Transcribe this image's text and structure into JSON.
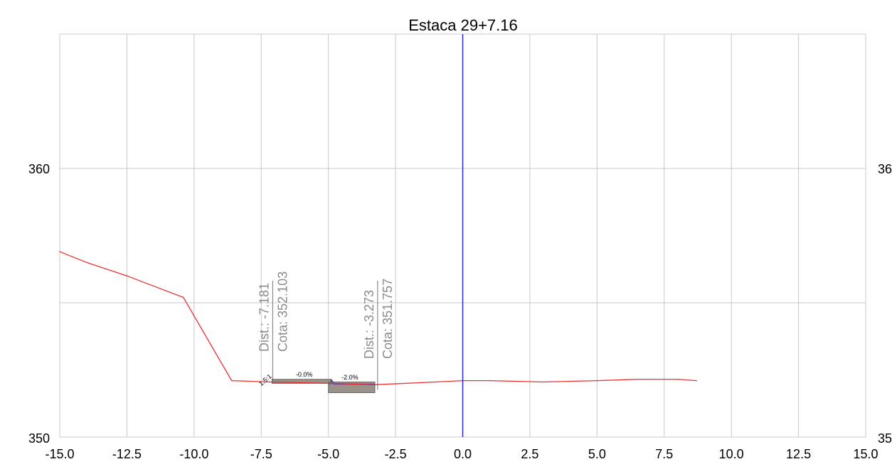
{
  "chart_data": {
    "type": "line",
    "title": "Estaca 29+7.16",
    "xlabel": "",
    "ylabel": "",
    "xlim": [
      -15.0,
      15.0
    ],
    "ylim": [
      350,
      365
    ],
    "grid": true,
    "x_ticks": [
      "-15.0",
      "-12.5",
      "-10.0",
      "-7.5",
      "-5.0",
      "-2.5",
      "0.0",
      "2.5",
      "5.0",
      "7.5",
      "10.0",
      "12.5",
      "15.0"
    ],
    "x_tick_values": [
      -15.0,
      -12.5,
      -10.0,
      -7.5,
      -5.0,
      -2.5,
      0.0,
      2.5,
      5.0,
      7.5,
      10.0,
      12.5,
      15.0
    ],
    "y_ticks_left": [
      {
        "value": 360,
        "label": "360"
      },
      {
        "value": 350,
        "label": "350"
      }
    ],
    "y_ticks_right": [
      {
        "value": 360,
        "label": "36"
      },
      {
        "value": 350,
        "label": "35"
      }
    ],
    "y_grid_values": [
      350,
      355,
      360,
      365
    ],
    "centerline": {
      "x": 0.0,
      "color": "#2b2bd6"
    },
    "series": [
      {
        "color": "#e83030",
        "x": [
          -15.0,
          -14.0,
          -12.5,
          -10.4,
          -8.6,
          -7.18,
          -5.0,
          -3.27,
          -1.0,
          0.0,
          1.0,
          3.0,
          5.0,
          6.5,
          8.0,
          8.7
        ],
        "y": [
          356.9,
          356.5,
          356.0,
          355.2,
          352.1,
          352.05,
          352.0,
          351.95,
          352.05,
          352.1,
          352.1,
          352.05,
          352.1,
          352.15,
          352.15,
          352.1
        ]
      }
    ],
    "pavement": {
      "left_layer": {
        "x0": -7.1,
        "x1": -4.9,
        "y_top": 352.15,
        "y_bot": 352.0,
        "color": "#9a9288"
      },
      "right_layer": {
        "x0": -5.0,
        "x1": -3.27,
        "y_top": 352.05,
        "y_bot": 351.65,
        "color": "#9a9288"
      },
      "right_top_line": {
        "x": [
          -4.9,
          -4.8,
          -3.27
        ],
        "y": [
          352.15,
          351.98,
          351.96
        ],
        "color": "#2b2bd6"
      },
      "left_step": {
        "x": [
          -4.9,
          -4.9,
          -5.0
        ],
        "y": [
          352.15,
          351.98,
          351.98
        ]
      }
    },
    "annotations": [
      {
        "text": "Dist.: -7.181",
        "x": -7.181,
        "y": 352.103
      },
      {
        "text": "Cota: 352.103",
        "x": -7.181,
        "y": 352.103
      },
      {
        "text": "Dist.: -3.273",
        "x": -3.273,
        "y": 351.757
      },
      {
        "text": "Cota: 351.757",
        "x": -3.273,
        "y": 351.757
      },
      {
        "text": "-0.0%",
        "x": -5.9,
        "y": 352.2
      },
      {
        "text": "-2.0%",
        "x": -4.2,
        "y": 352.05
      },
      {
        "text": "1.5:1",
        "x": -7.3,
        "y": 352.1
      }
    ]
  }
}
